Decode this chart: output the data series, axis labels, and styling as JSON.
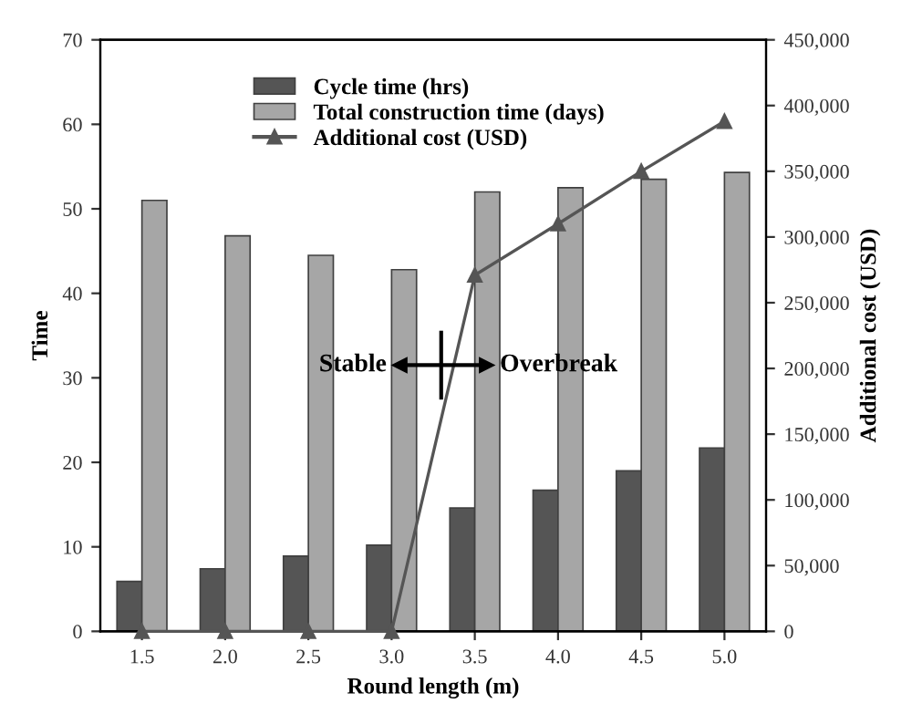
{
  "chart_data": {
    "type": "bar",
    "xlabel": "Round length (m)",
    "ylabel": "Time",
    "y2label": "Additional cost (USD)",
    "categories": [
      "1.5",
      "2.0",
      "2.5",
      "3.0",
      "3.5",
      "4.0",
      "4.5",
      "5.0"
    ],
    "series": [
      {
        "name": "Cycle time (hrs)",
        "color": "#555555",
        "values": [
          5.9,
          7.4,
          8.9,
          10.2,
          14.6,
          16.7,
          19.0,
          21.7
        ]
      },
      {
        "name": "Total construction time (days)",
        "color": "#a6a6a6",
        "values": [
          51.0,
          46.8,
          44.5,
          42.8,
          52.0,
          52.5,
          53.5,
          54.3
        ]
      },
      {
        "name": "Additional cost (USD)",
        "type": "line",
        "axis": "y2",
        "color": "#555555",
        "marker": "triangle",
        "values": [
          0,
          0,
          0,
          0,
          271000,
          310000,
          350000,
          388000
        ]
      }
    ],
    "ylim": [
      0,
      70
    ],
    "yticks": [
      0,
      10,
      20,
      30,
      40,
      50,
      60,
      70
    ],
    "y2lim": [
      0,
      450000
    ],
    "y2ticks": [
      {
        "value": 0,
        "label": "0"
      },
      {
        "value": 50000,
        "label": "50,000"
      },
      {
        "value": 100000,
        "label": "100,000"
      },
      {
        "value": 150000,
        "label": "150,000"
      },
      {
        "value": 200000,
        "label": "200,000"
      },
      {
        "value": 250000,
        "label": "250,000"
      },
      {
        "value": 300000,
        "label": "300,000"
      },
      {
        "value": 350000,
        "label": "350,000"
      },
      {
        "value": 400000,
        "label": "400,000"
      },
      {
        "value": 450000,
        "label": "450,000"
      }
    ],
    "annotations": [
      "Stable",
      "Overbreak"
    ],
    "legend": "top",
    "grid": false
  }
}
